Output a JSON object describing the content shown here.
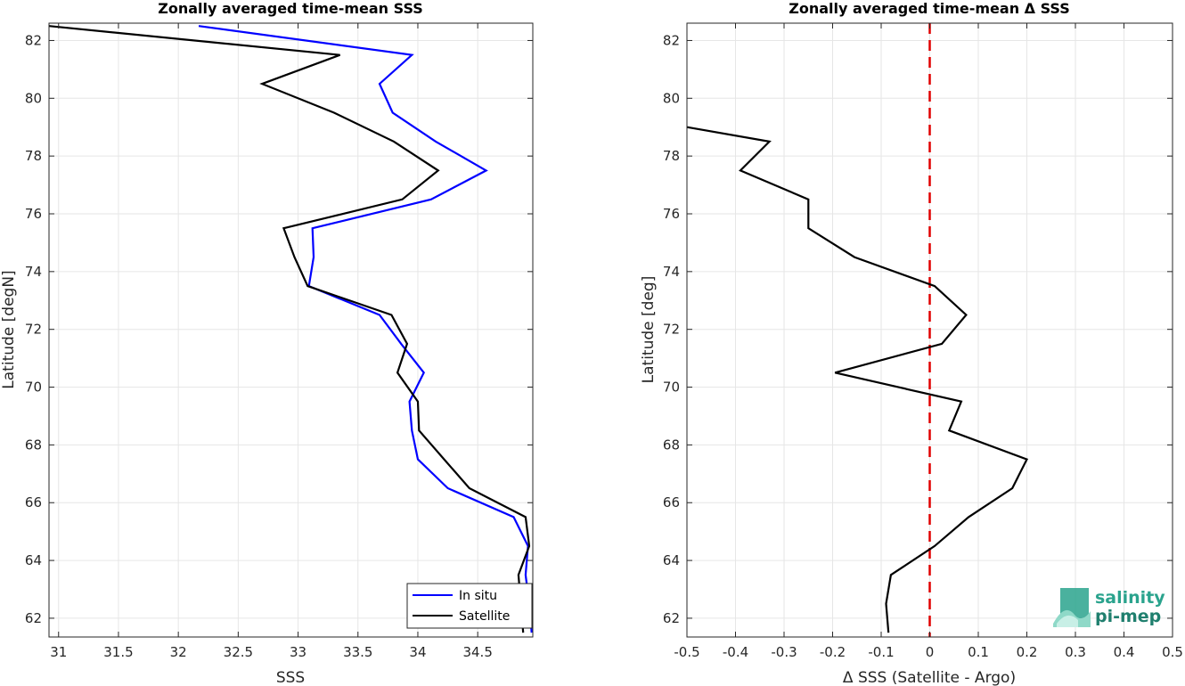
{
  "chart_data": [
    {
      "type": "line",
      "title": "Zonally averaged time-mean SSS",
      "xlabel": "SSS",
      "ylabel": "Latitude [degN]",
      "xlim": [
        30.92,
        34.96
      ],
      "ylim": [
        61.35,
        82.6
      ],
      "xticks": [
        31,
        31.5,
        32,
        32.5,
        33,
        33.5,
        34,
        34.5
      ],
      "yticks": [
        62,
        64,
        66,
        68,
        70,
        72,
        74,
        76,
        78,
        80,
        82
      ],
      "grid": true,
      "legend": "bottom-right",
      "series": [
        {
          "name": "In situ",
          "color": "#0000ff",
          "x": [
            32.17,
            33.95,
            33.68,
            33.79,
            34.15,
            34.57,
            34.11,
            33.12,
            33.13,
            33.09,
            33.68,
            33.86,
            34.05,
            33.93,
            33.95,
            34.0,
            34.25,
            34.8,
            34.92,
            34.9,
            34.93,
            34.95
          ],
          "y": [
            82.5,
            81.5,
            80.5,
            79.5,
            78.5,
            77.5,
            76.5,
            75.5,
            74.5,
            73.5,
            72.5,
            71.5,
            70.5,
            69.5,
            68.5,
            67.5,
            66.5,
            65.5,
            64.5,
            63.5,
            62.5,
            61.5
          ]
        },
        {
          "name": "Satellite",
          "color": "#000000",
          "x": [
            30.92,
            33.35,
            32.7,
            33.3,
            33.8,
            34.17,
            33.87,
            32.88,
            32.97,
            33.08,
            33.78,
            33.91,
            33.83,
            34.0,
            34.01,
            34.22,
            34.43,
            34.9,
            34.93,
            34.84,
            34.86,
            34.88
          ],
          "y": [
            82.5,
            81.5,
            80.5,
            79.5,
            78.5,
            77.5,
            76.5,
            75.5,
            74.5,
            73.5,
            72.5,
            71.5,
            70.5,
            69.5,
            68.5,
            67.5,
            66.5,
            65.5,
            64.5,
            63.5,
            62.5,
            61.5
          ]
        }
      ]
    },
    {
      "type": "line",
      "title": "Zonally averaged time-mean Δ SSS",
      "xlabel": "Δ SSS (Satellite - Argo)",
      "ylabel": "Latitude [deg]",
      "xlim": [
        -0.5,
        0.5
      ],
      "ylim": [
        61.35,
        82.6
      ],
      "xticks": [
        -0.5,
        -0.4,
        -0.3,
        -0.2,
        -0.1,
        0,
        0.1,
        0.2,
        0.3,
        0.4,
        0.5
      ],
      "yticks": [
        62,
        64,
        66,
        68,
        70,
        72,
        74,
        76,
        78,
        80,
        82
      ],
      "grid": true,
      "zero_line": {
        "x": 0,
        "color": "#e00000",
        "style": "dashed"
      },
      "series": [
        {
          "color": "#000000",
          "x": [
            -0.5,
            -0.33,
            -0.39,
            -0.25,
            -0.25,
            -0.155,
            0.01,
            0.075,
            0.025,
            -0.195,
            0.065,
            0.04,
            0.2,
            0.17,
            0.08,
            0.01,
            -0.08,
            -0.09,
            -0.085
          ],
          "y": [
            79.0,
            78.5,
            77.5,
            76.5,
            75.5,
            74.5,
            73.5,
            72.5,
            71.5,
            70.5,
            69.5,
            68.5,
            67.5,
            66.5,
            65.5,
            64.5,
            63.5,
            62.5,
            61.5
          ]
        }
      ]
    }
  ],
  "legend": {
    "items": [
      "In situ",
      "Satellite"
    ]
  },
  "logo": {
    "line1": "salinity",
    "line2": "pi-mep",
    "color": "#2aa38d"
  }
}
